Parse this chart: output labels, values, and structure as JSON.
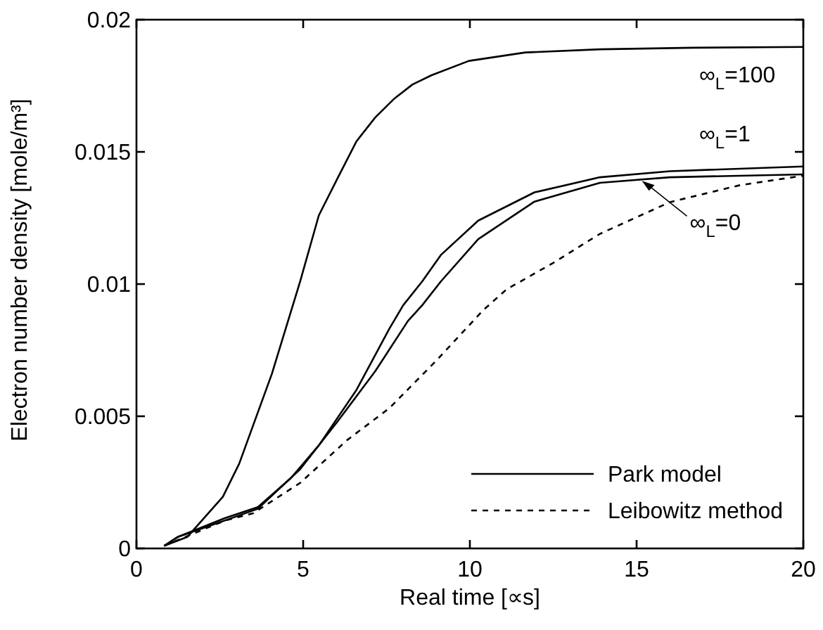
{
  "chart_data": {
    "type": "line",
    "xlabel": "Real time [∝s]",
    "ylabel": "Electron number density [mole/m³]",
    "xlim": [
      0,
      20
    ],
    "ylim": [
      0,
      0.02
    ],
    "xticks": [
      0,
      5,
      10,
      15,
      20
    ],
    "yticks": [
      0,
      0.005,
      0.01,
      0.015,
      0.02
    ],
    "grid": false,
    "legend": "top right",
    "series": [
      {
        "name": "∞$_{L}$=100",
        "color": "#000000",
        "line_style": "solid",
        "x": [
          0.83,
          1.53,
          2.59,
          3.08,
          4.06,
          4.91,
          5.47,
          6.03,
          6.6,
          7.16,
          7.72,
          8.28,
          8.85,
          9.97,
          11.66,
          13.9,
          16.7,
          20
        ],
        "values": [
          0.0001,
          0.00044,
          0.00195,
          0.0032,
          0.0066,
          0.0101,
          0.0126,
          0.014,
          0.0154,
          0.0163,
          0.017,
          0.01755,
          0.0179,
          0.01844,
          0.01876,
          0.01888,
          0.01894,
          0.01897
        ]
      },
      {
        "name": "∞$_{L}$=1",
        "color": "#000000",
        "line_style": "solid",
        "x": [
          0.83,
          1.25,
          2.66,
          3.64,
          4.63,
          5.47,
          6.6,
          7.58,
          8.0,
          8.57,
          9.13,
          10.25,
          11.94,
          13.9,
          16.0,
          20
        ],
        "values": [
          0.0001,
          0.00044,
          0.00115,
          0.00156,
          0.00266,
          0.0039,
          0.006,
          0.0083,
          0.0092,
          0.0101,
          0.0111,
          0.0124,
          0.01347,
          0.01404,
          0.01427,
          0.01445
        ]
      },
      {
        "name": "∞$_{L}$=0",
        "color": "#000000",
        "line_style": "solid",
        "x": [
          0.83,
          1.25,
          2.66,
          3.64,
          4.91,
          6.03,
          7.16,
          8.14,
          8.57,
          9.13,
          10.25,
          11.94,
          13.9,
          16.0,
          20
        ],
        "values": [
          0.0001,
          0.00044,
          0.00106,
          0.0015,
          0.003,
          0.0048,
          0.0067,
          0.0086,
          0.0092,
          0.0101,
          0.0117,
          0.01312,
          0.01383,
          0.01404,
          0.01415
        ]
      },
      {
        "color": "#000000",
        "line_style": "dashed",
        "x": [
          0.83,
          2.66,
          3.5,
          4.91,
          6.32,
          7.58,
          8.99,
          10.39,
          11.1,
          12.5,
          13.9,
          16.0,
          18.1,
          20
        ],
        "values": [
          0.0001,
          0.00106,
          0.00133,
          0.00248,
          0.0041,
          0.0053,
          0.0071,
          0.009,
          0.0098,
          0.0108,
          0.0119,
          0.0131,
          0.01374,
          0.0141
        ]
      }
    ],
    "annotations": [
      "Park model",
      "Leibowitz method"
    ]
  }
}
